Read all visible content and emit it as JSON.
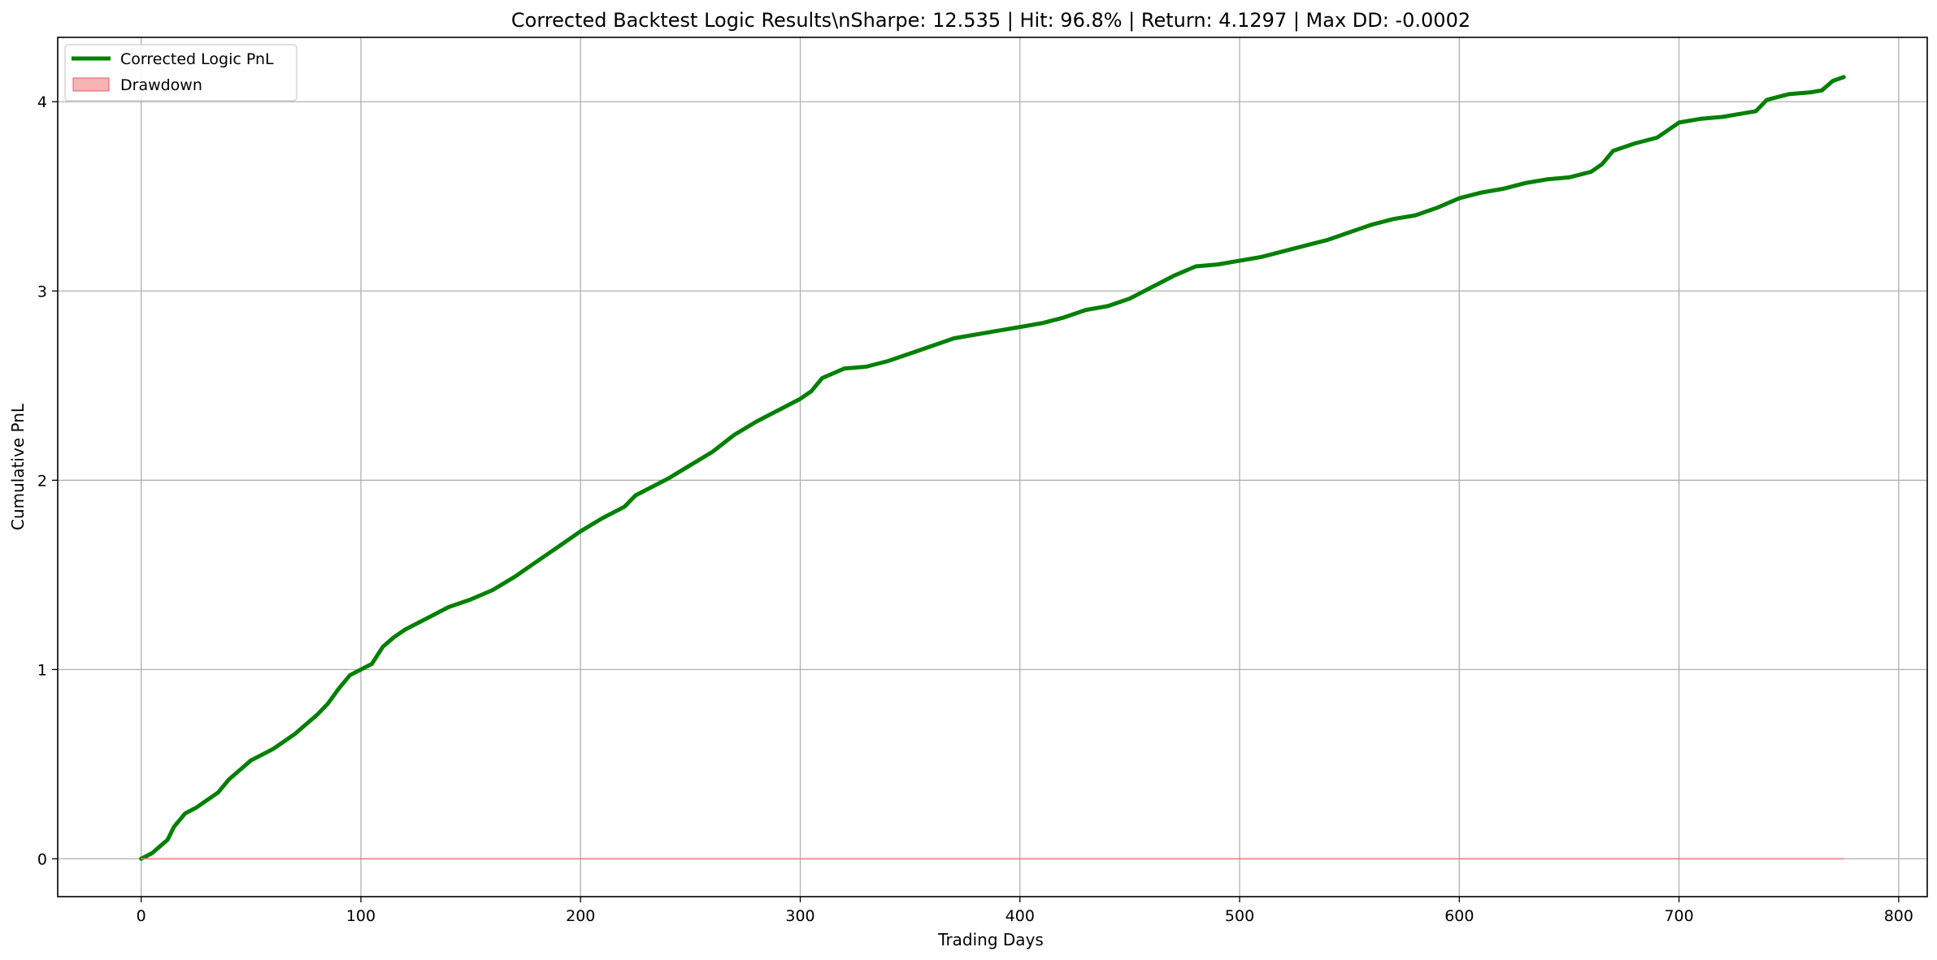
{
  "chart_data": {
    "type": "line",
    "title": "Corrected Backtest Logic Results\\nSharpe: 12.535 | Hit: 96.8% | Return: 4.1297 | Max DD: -0.0002",
    "xlabel": "Trading Days",
    "ylabel": "Cumulative PnL",
    "xlim": [
      -38,
      813
    ],
    "ylim": [
      -0.2,
      4.34
    ],
    "xticks": [
      0,
      100,
      200,
      300,
      400,
      500,
      600,
      700,
      800
    ],
    "yticks": [
      0,
      1,
      2,
      3,
      4
    ],
    "grid": true,
    "legend_position": "top-left",
    "legend": [
      "Corrected Logic PnL",
      "Drawdown"
    ],
    "series": [
      {
        "name": "Corrected Logic PnL",
        "kind": "line",
        "color": "#008000",
        "x": [
          0,
          5,
          10,
          12,
          15,
          20,
          25,
          30,
          35,
          40,
          45,
          50,
          55,
          60,
          65,
          70,
          75,
          80,
          85,
          90,
          95,
          100,
          105,
          110,
          115,
          120,
          125,
          130,
          140,
          150,
          160,
          170,
          180,
          190,
          200,
          210,
          220,
          225,
          230,
          240,
          250,
          260,
          270,
          280,
          290,
          300,
          305,
          310,
          320,
          330,
          340,
          350,
          360,
          370,
          380,
          390,
          400,
          410,
          420,
          430,
          440,
          450,
          460,
          470,
          480,
          490,
          500,
          510,
          520,
          530,
          540,
          550,
          560,
          570,
          580,
          590,
          600,
          610,
          620,
          630,
          640,
          650,
          660,
          665,
          670,
          680,
          690,
          700,
          710,
          720,
          730,
          735,
          740,
          750,
          760,
          765,
          770,
          775
        ],
        "y": [
          0.0,
          0.03,
          0.08,
          0.1,
          0.17,
          0.24,
          0.27,
          0.31,
          0.35,
          0.42,
          0.47,
          0.52,
          0.55,
          0.58,
          0.62,
          0.66,
          0.71,
          0.76,
          0.82,
          0.9,
          0.97,
          1.0,
          1.03,
          1.12,
          1.17,
          1.21,
          1.24,
          1.27,
          1.33,
          1.37,
          1.42,
          1.49,
          1.57,
          1.65,
          1.73,
          1.8,
          1.86,
          1.92,
          1.95,
          2.01,
          2.08,
          2.15,
          2.24,
          2.31,
          2.37,
          2.43,
          2.47,
          2.54,
          2.59,
          2.6,
          2.63,
          2.67,
          2.71,
          2.75,
          2.77,
          2.79,
          2.81,
          2.83,
          2.86,
          2.9,
          2.92,
          2.96,
          3.02,
          3.08,
          3.13,
          3.14,
          3.16,
          3.18,
          3.21,
          3.24,
          3.27,
          3.31,
          3.35,
          3.38,
          3.4,
          3.44,
          3.49,
          3.52,
          3.54,
          3.57,
          3.59,
          3.6,
          3.63,
          3.67,
          3.74,
          3.78,
          3.81,
          3.89,
          3.91,
          3.92,
          3.94,
          3.95,
          4.01,
          4.04,
          4.05,
          4.06,
          4.11,
          4.13
        ]
      },
      {
        "name": "Drawdown",
        "kind": "area",
        "color": "#f08080",
        "x": [
          0,
          775
        ],
        "y": [
          0.0,
          0.0
        ]
      }
    ]
  }
}
